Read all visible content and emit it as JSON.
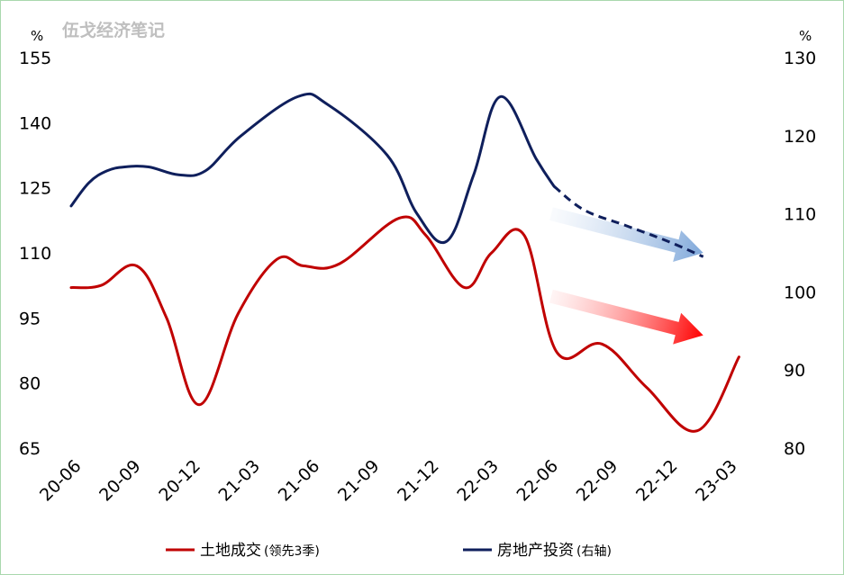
{
  "watermark": "伍戈经济笔记",
  "chart_data": {
    "type": "line",
    "categories": [
      "20-06",
      "20-09",
      "20-12",
      "21-03",
      "21-06",
      "21-09",
      "21-12",
      "22-03",
      "22-06",
      "22-09",
      "22-12",
      "23-03"
    ],
    "left_axis": {
      "unit": "%",
      "ylim": [
        65,
        155
      ],
      "ticks": [
        155,
        140,
        125,
        110,
        95,
        80,
        65
      ]
    },
    "right_axis": {
      "unit": "%",
      "ylim": [
        80,
        130
      ],
      "ticks": [
        130,
        120,
        110,
        100,
        90,
        80
      ]
    },
    "series": [
      {
        "name": "土地成交",
        "name_note": "(领先3季)",
        "axis": "left",
        "color": "#c00000",
        "x": [
          0,
          0.5,
          1.1,
          1.6,
          2.15,
          2.8,
          3.45,
          3.9,
          4.5,
          5.5,
          5.95,
          6.6,
          7.05,
          7.6,
          8.15,
          8.9,
          9.65,
          10.5,
          11.2
        ],
        "values": [
          102,
          102.5,
          107,
          95,
          75,
          96,
          108.5,
          107,
          107.5,
          118,
          114,
          102,
          110,
          114,
          87,
          89,
          79,
          69,
          86
        ]
      },
      {
        "name": "房地产投资",
        "name_note": "(右轴)",
        "axis": "right",
        "color": "#0f1f5c",
        "x": [
          0,
          0.3,
          0.6,
          0.9,
          1.3,
          1.8,
          2.25,
          2.85,
          3.8,
          4.3,
          5.3,
          5.8,
          6.3,
          6.75,
          7.2,
          7.8,
          8.1
        ],
        "values": [
          111,
          114,
          115.5,
          116,
          116,
          115,
          115.5,
          120,
          125,
          124,
          117.5,
          110,
          106.5,
          115,
          125,
          117,
          113.5
        ]
      },
      {
        "name": "",
        "axis": "right",
        "color": "#0f1f5c",
        "style": "dashed",
        "x": [
          8.1,
          8.6,
          9.3,
          10.0,
          10.6
        ],
        "values": [
          113.5,
          110.5,
          108.5,
          106.5,
          104.5
        ]
      }
    ],
    "annotations": [
      {
        "kind": "arrow",
        "color": "#7fa8da",
        "from": [
          8.05,
          119
        ],
        "to": [
          10.6,
          110
        ]
      },
      {
        "kind": "arrow",
        "color": "#ff0000",
        "from": [
          8.05,
          100
        ],
        "to": [
          10.6,
          91
        ]
      }
    ],
    "grid": false,
    "legend_position": "bottom"
  }
}
